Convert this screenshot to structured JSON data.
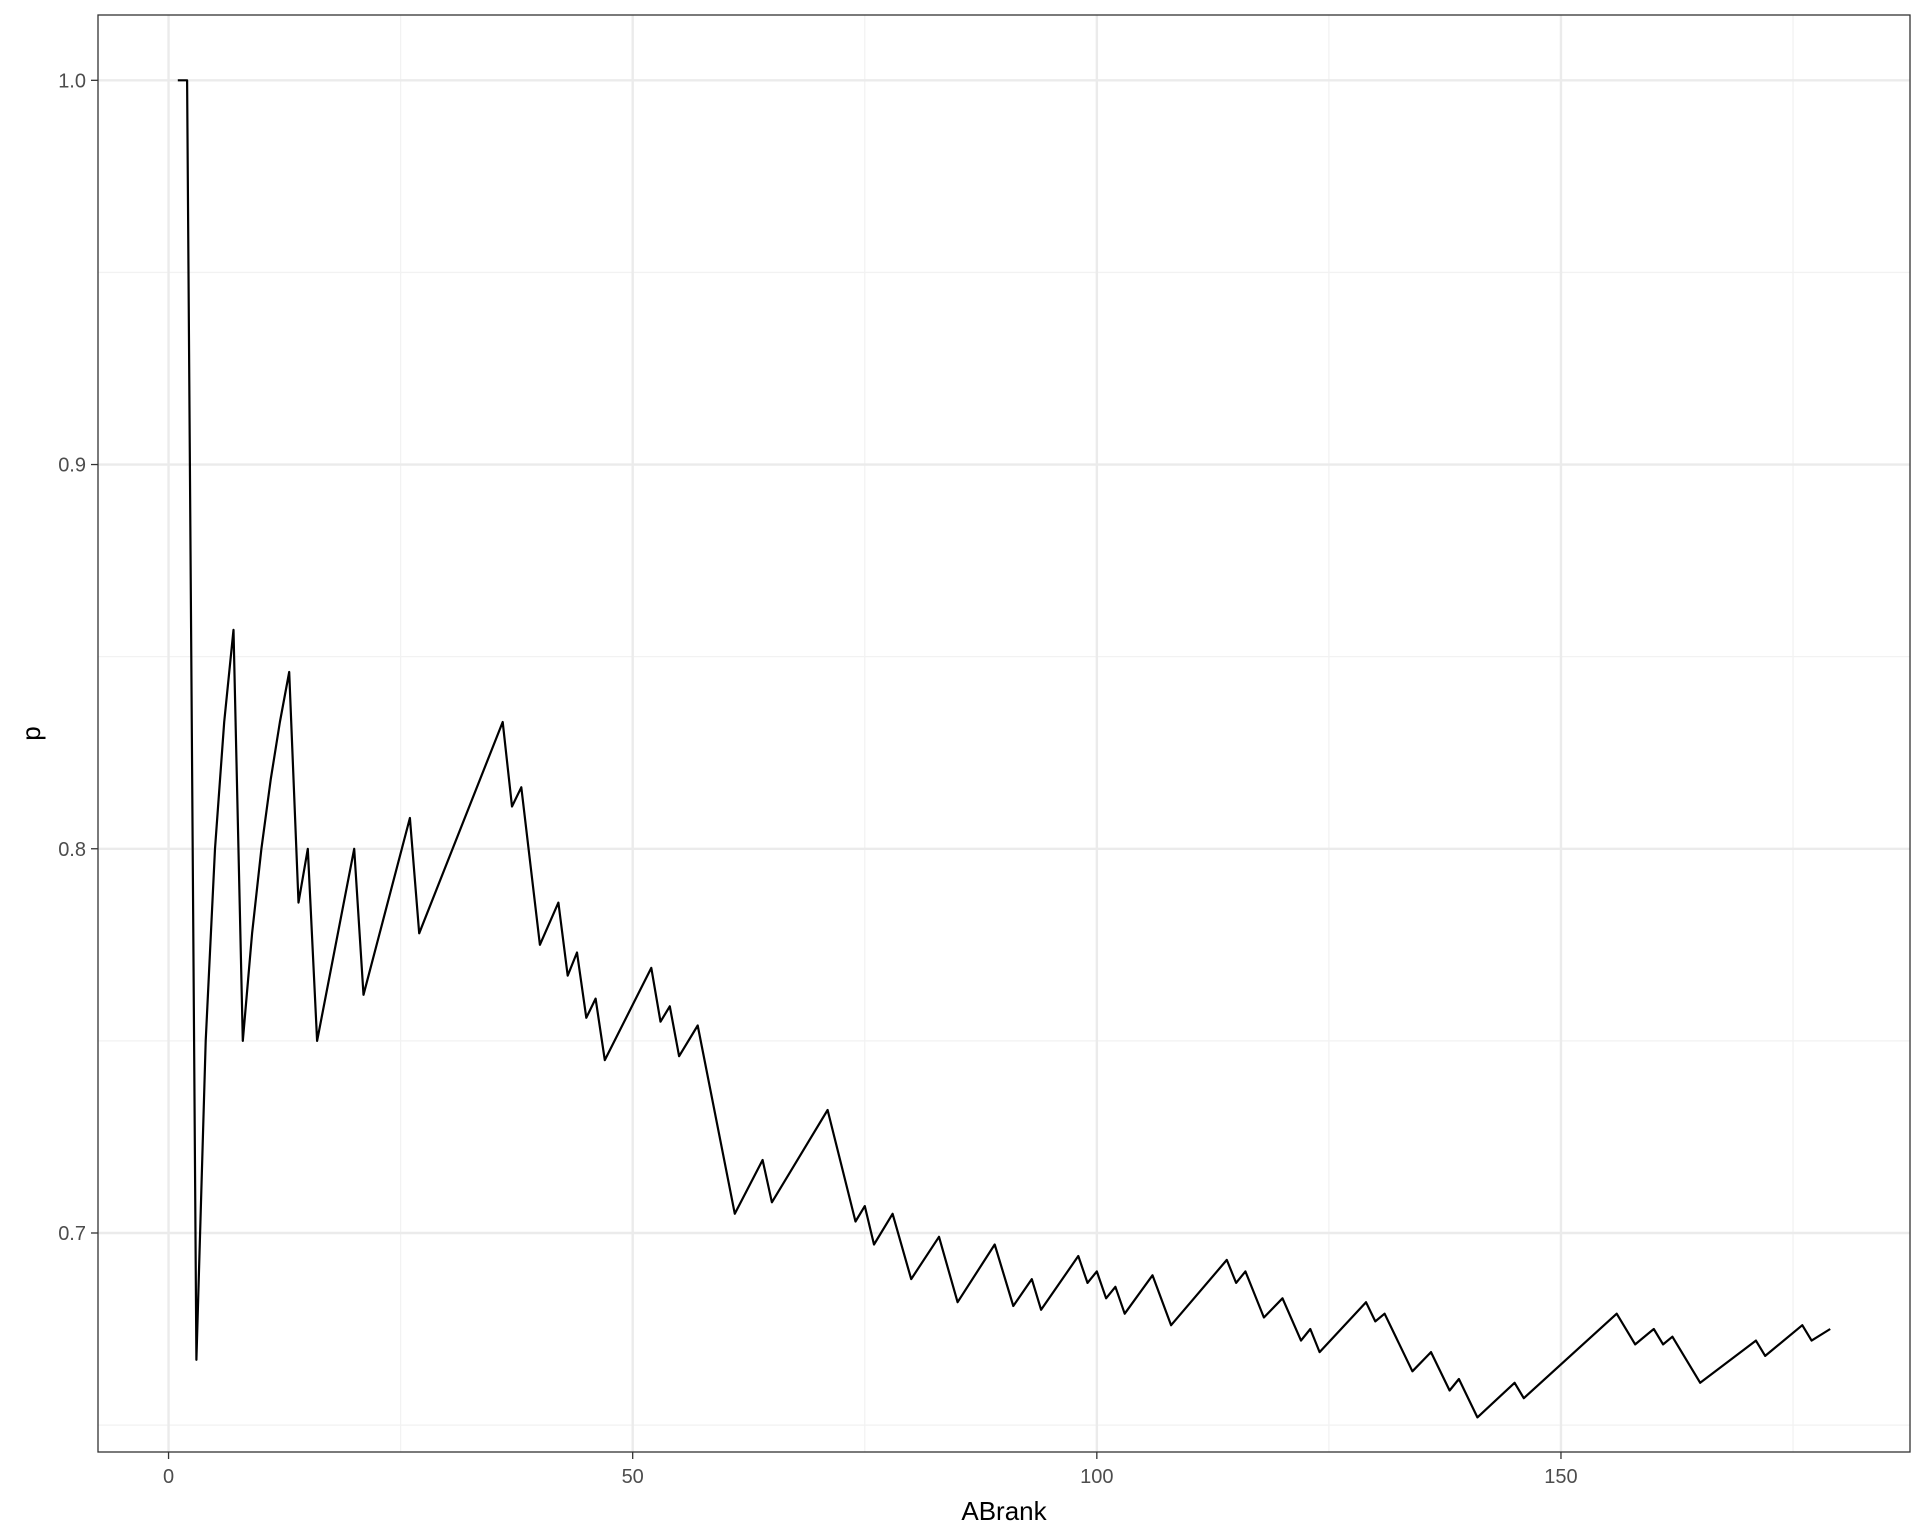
{
  "chart_data": {
    "type": "line",
    "title": "",
    "xlabel": "ABrank",
    "ylabel": "p",
    "xlim": [
      -7.6,
      187.6
    ],
    "ylim": [
      0.643,
      1.017
    ],
    "x_ticks": [
      0,
      50,
      100,
      150
    ],
    "x_tick_labels": [
      "0",
      "50",
      "100",
      "150"
    ],
    "y_ticks": [
      0.7,
      0.8,
      0.9,
      1.0
    ],
    "y_tick_labels": [
      "0.7",
      "0.8",
      "0.9",
      "1.0"
    ],
    "grid": true,
    "legend": "none",
    "colors": {
      "line": "#000000",
      "grid_major": "#ebebeb",
      "grid_minor": "#f2f2f2",
      "panel_border": "#333333",
      "background": "#ffffff"
    },
    "series": [
      {
        "x": [
          1,
          2,
          3,
          4,
          5,
          6,
          7,
          8,
          9,
          10,
          11,
          12,
          13,
          14,
          15,
          16,
          20,
          21,
          26,
          27,
          36,
          37,
          38,
          40,
          42,
          43,
          44,
          45,
          46,
          47,
          52,
          53,
          54,
          55,
          57,
          61,
          64,
          65,
          71,
          74,
          75,
          76,
          78,
          80,
          83,
          85,
          89,
          91,
          93,
          94,
          98,
          99,
          100,
          101,
          102,
          103,
          106,
          108,
          114,
          115,
          116,
          118,
          120,
          122,
          123,
          124,
          129,
          130,
          131,
          134,
          136,
          138,
          139,
          141,
          145,
          146,
          156,
          158,
          160,
          161,
          162,
          165,
          171,
          172,
          176,
          177,
          179
        ],
        "y": [
          1.0,
          1.0,
          0.667,
          0.75,
          0.8,
          0.833,
          0.857,
          0.75,
          0.778,
          0.8,
          0.818,
          0.833,
          0.846,
          0.786,
          0.8,
          0.75,
          0.8,
          0.762,
          0.808,
          0.778,
          0.833,
          0.811,
          0.816,
          0.775,
          0.786,
          0.767,
          0.773,
          0.756,
          0.761,
          0.745,
          0.769,
          0.755,
          0.759,
          0.746,
          0.754,
          0.705,
          0.719,
          0.708,
          0.732,
          0.703,
          0.707,
          0.697,
          0.705,
          0.688,
          0.699,
          0.682,
          0.697,
          0.681,
          0.688,
          0.68,
          0.694,
          0.687,
          0.69,
          0.683,
          0.686,
          0.679,
          0.689,
          0.676,
          0.693,
          0.687,
          0.69,
          0.678,
          0.683,
          0.672,
          0.675,
          0.669,
          0.682,
          0.677,
          0.679,
          0.664,
          0.669,
          0.659,
          0.662,
          0.652,
          0.661,
          0.657,
          0.679,
          0.671,
          0.675,
          0.671,
          0.673,
          0.661,
          0.672,
          0.668,
          0.676,
          0.672,
          0.675
        ]
      }
    ]
  }
}
